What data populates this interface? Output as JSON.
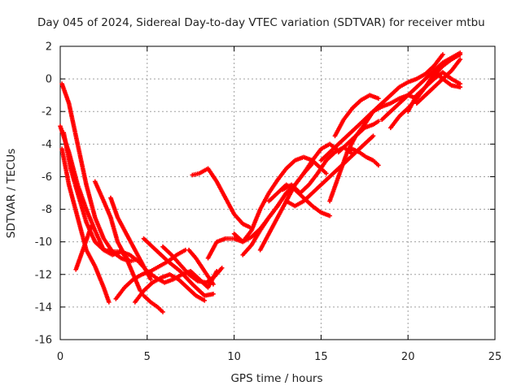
{
  "chart_data": {
    "type": "scatter",
    "title": "Day 045 of 2024, Sidereal Day-to-day VTEC variation (SDTVAR) for receiver mtbu",
    "xlabel": "GPS time / hours",
    "ylabel": "SDTVAR / TECUs",
    "xlim": [
      0,
      25
    ],
    "ylim": [
      -16,
      2
    ],
    "xticks": [
      0,
      5,
      10,
      15,
      20,
      25
    ],
    "yticks": [
      -16,
      -14,
      -12,
      -10,
      -8,
      -6,
      -4,
      -2,
      0,
      2
    ],
    "grid": true,
    "marker": "+",
    "color": "#ff0000",
    "series": [
      {
        "x": [
          0.1,
          0.5,
          1.0,
          1.5,
          2.0,
          2.5,
          3.0,
          3.5,
          4.0,
          4.3
        ],
        "y": [
          -0.3,
          -1.5,
          -4.0,
          -6.5,
          -8.5,
          -9.8,
          -10.6,
          -11.0,
          -11.2,
          -11.1
        ]
      },
      {
        "x": [
          0.0,
          0.5,
          1.0,
          1.5,
          2.0,
          2.5,
          3.0,
          3.5,
          4.0,
          4.5,
          5.0,
          5.5,
          6.0,
          6.5,
          7.0,
          7.5,
          8.0,
          8.5,
          9.0
        ],
        "y": [
          -2.9,
          -4.5,
          -6.5,
          -8.0,
          -9.3,
          -10.5,
          -10.8,
          -10.6,
          -10.8,
          -11.2,
          -11.8,
          -12.2,
          -12.5,
          -12.3,
          -12.0,
          -11.8,
          -12.3,
          -12.8,
          -11.8
        ]
      },
      {
        "x": [
          0.1,
          0.5,
          1.0,
          1.5,
          2.0,
          2.5,
          2.8
        ],
        "y": [
          -4.3,
          -6.5,
          -8.5,
          -10.5,
          -11.5,
          -12.8,
          -13.7
        ]
      },
      {
        "x": [
          0.2,
          0.6,
          1.0,
          1.5,
          2.0,
          2.5,
          3.0,
          3.5,
          4.0
        ],
        "y": [
          -3.3,
          -5.5,
          -7.0,
          -8.8,
          -10.0,
          -10.5,
          -10.6,
          -10.6,
          -11.2
        ]
      },
      {
        "x": [
          0.9,
          1.3,
          1.8
        ],
        "y": [
          -11.7,
          -10.5,
          -9.0
        ]
      },
      {
        "x": [
          2.0,
          2.5,
          2.9,
          3.3,
          3.8,
          4.2,
          4.6
        ],
        "y": [
          -6.3,
          -7.5,
          -8.5,
          -10.0,
          -11.0,
          -12.0,
          -13.0
        ]
      },
      {
        "x": [
          2.9,
          3.3,
          3.8,
          4.3,
          4.8,
          5.2
        ],
        "y": [
          -7.3,
          -8.5,
          -9.5,
          -10.5,
          -11.5,
          -12.3
        ]
      },
      {
        "x": [
          3.2,
          3.7,
          4.2,
          4.7,
          5.2,
          5.7,
          6.2,
          6.7,
          7.2
        ],
        "y": [
          -13.5,
          -12.8,
          -12.3,
          -12.0,
          -11.8,
          -11.5,
          -11.2,
          -10.8,
          -10.5
        ]
      },
      {
        "x": [
          4.3,
          4.8,
          5.3,
          5.8,
          6.3,
          6.8,
          7.3,
          7.8,
          8.3
        ],
        "y": [
          -13.7,
          -13.0,
          -12.5,
          -12.2,
          -12.0,
          -12.3,
          -12.8,
          -13.3,
          -13.6
        ]
      },
      {
        "x": [
          4.8,
          5.2,
          5.6,
          5.9
        ],
        "y": [
          -13.3,
          -13.7,
          -14.0,
          -14.3
        ]
      },
      {
        "x": [
          4.8,
          5.5,
          6.2,
          6.9,
          7.6,
          8.3,
          8.8
        ],
        "y": [
          -9.8,
          -10.5,
          -11.2,
          -11.8,
          -12.6,
          -13.3,
          -13.2
        ]
      },
      {
        "x": [
          5.9,
          6.4,
          6.9,
          7.4,
          7.9,
          8.4,
          8.9,
          9.3
        ],
        "y": [
          -10.3,
          -10.8,
          -11.4,
          -12.0,
          -12.4,
          -12.5,
          -12.1,
          -11.6
        ]
      },
      {
        "x": [
          7.4,
          7.8,
          8.3,
          8.8
        ],
        "y": [
          -10.5,
          -11.0,
          -11.8,
          -12.6
        ]
      },
      {
        "x": [
          7.6,
          8.0,
          8.5,
          9.0,
          9.5,
          10.0,
          10.5,
          10.9
        ],
        "y": [
          -5.9,
          -5.8,
          -5.5,
          -6.3,
          -7.3,
          -8.3,
          -8.9,
          -9.1
        ]
      },
      {
        "x": [
          8.5,
          9.0,
          9.5,
          10.0,
          10.5,
          11.0,
          11.5,
          12.0,
          12.5,
          13.0
        ],
        "y": [
          -11.0,
          -10.0,
          -9.8,
          -9.8,
          -10.0,
          -9.7,
          -9.2,
          -8.5,
          -7.8,
          -7.0
        ]
      },
      {
        "x": [
          10.0,
          10.5,
          11.0,
          11.5,
          12.0,
          12.5,
          13.0,
          13.5,
          14.0,
          14.5,
          15.0,
          15.3
        ],
        "y": [
          -9.5,
          -10.0,
          -9.3,
          -8.0,
          -7.0,
          -6.2,
          -5.5,
          -5.0,
          -4.8,
          -5.0,
          -5.5,
          -5.8
        ]
      },
      {
        "x": [
          10.5,
          11.0,
          11.5,
          12.0,
          12.5,
          13.0,
          13.5,
          14.0,
          14.5,
          15.0,
          15.5,
          16.0
        ],
        "y": [
          -10.8,
          -10.2,
          -9.3,
          -8.5,
          -7.8,
          -7.0,
          -6.5,
          -5.8,
          -5.0,
          -4.3,
          -4.0,
          -4.4
        ]
      },
      {
        "x": [
          11.5,
          12.0,
          12.5,
          13.0,
          13.5,
          14.0,
          14.5
        ],
        "y": [
          -10.5,
          -9.5,
          -8.5,
          -7.5,
          -6.5,
          -5.8,
          -5.2
        ]
      },
      {
        "x": [
          12.0,
          12.5,
          13.0,
          13.5,
          14.0,
          14.5,
          15.0,
          15.5
        ],
        "y": [
          -7.5,
          -7.0,
          -6.5,
          -6.8,
          -7.3,
          -7.8,
          -8.2,
          -8.4
        ]
      },
      {
        "x": [
          12.8,
          13.3,
          13.8,
          14.3,
          14.8,
          15.3,
          15.8,
          16.3,
          16.8
        ],
        "y": [
          -6.8,
          -6.5,
          -7.0,
          -6.5,
          -5.8,
          -5.0,
          -4.5,
          -4.2,
          -4.6
        ]
      },
      {
        "x": [
          13.0,
          13.5,
          14.0,
          14.5,
          15.0,
          15.5,
          16.0,
          16.5,
          17.0,
          17.5,
          18.0
        ],
        "y": [
          -7.5,
          -7.8,
          -7.5,
          -7.0,
          -6.5,
          -6.0,
          -5.5,
          -5.0,
          -4.5,
          -4.0,
          -3.5
        ]
      },
      {
        "x": [
          15.0,
          15.5,
          16.0,
          16.5,
          17.0,
          17.5,
          18.0,
          18.5,
          19.0,
          19.5,
          20.0,
          20.5
        ],
        "y": [
          -5.0,
          -4.5,
          -4.0,
          -3.5,
          -3.0,
          -2.5,
          -2.0,
          -1.7,
          -1.5,
          -1.2,
          -1.0,
          -1.2
        ]
      },
      {
        "x": [
          15.5,
          16.0,
          16.5,
          17.0,
          17.5,
          18.0,
          18.5
        ],
        "y": [
          -7.5,
          -6.0,
          -4.5,
          -3.5,
          -2.8,
          -2.0,
          -1.5
        ]
      },
      {
        "x": [
          15.8,
          16.3,
          16.8,
          17.3,
          17.8,
          18.3
        ],
        "y": [
          -3.5,
          -2.5,
          -1.8,
          -1.3,
          -1.0,
          -1.2
        ]
      },
      {
        "x": [
          16.0,
          16.5,
          17.0,
          17.5,
          18.0,
          18.3
        ],
        "y": [
          -4.5,
          -4.0,
          -3.5,
          -3.0,
          -2.8,
          -2.6
        ]
      },
      {
        "x": [
          16.5,
          16.8,
          17.2,
          17.6,
          18.0,
          18.3
        ],
        "y": [
          -4.5,
          -4.3,
          -4.5,
          -4.8,
          -5.0,
          -5.3
        ]
      },
      {
        "x": [
          17.5,
          18.0,
          18.5,
          19.0,
          19.5,
          20.0,
          20.5,
          21.0,
          21.5,
          22.0
        ],
        "y": [
          -2.5,
          -2.0,
          -1.5,
          -1.0,
          -0.5,
          -0.2,
          0.0,
          0.3,
          0.8,
          1.5
        ]
      },
      {
        "x": [
          18.5,
          19.0,
          19.5,
          20.0,
          20.5,
          21.0,
          21.5,
          22.0,
          22.5,
          23.0
        ],
        "y": [
          -2.5,
          -2.0,
          -1.5,
          -1.0,
          -0.5,
          0.0,
          0.5,
          1.0,
          1.3,
          1.6
        ]
      },
      {
        "x": [
          19.0,
          19.5,
          20.0,
          20.5,
          21.0,
          21.5,
          22.0,
          22.5,
          23.0
        ],
        "y": [
          -3.0,
          -2.3,
          -1.8,
          -1.2,
          -0.5,
          0.2,
          0.8,
          1.2,
          1.5
        ]
      },
      {
        "x": [
          20.0,
          20.5,
          21.0,
          21.5,
          22.0,
          22.5,
          23.0
        ],
        "y": [
          -2.0,
          -1.0,
          -0.5,
          0.0,
          0.4,
          0.0,
          -0.3
        ]
      },
      {
        "x": [
          20.5,
          21.0,
          21.5,
          22.0,
          22.5,
          23.0
        ],
        "y": [
          -1.5,
          -1.0,
          -0.5,
          0.0,
          0.5,
          1.2
        ]
      },
      {
        "x": [
          21.0,
          21.5,
          22.0,
          22.5,
          22.9
        ],
        "y": [
          -0.5,
          0.3,
          0.8,
          1.2,
          1.5
        ]
      },
      {
        "x": [
          21.5,
          22.0,
          22.5,
          23.0
        ],
        "y": [
          0.5,
          0.0,
          -0.4,
          -0.5
        ]
      }
    ]
  }
}
